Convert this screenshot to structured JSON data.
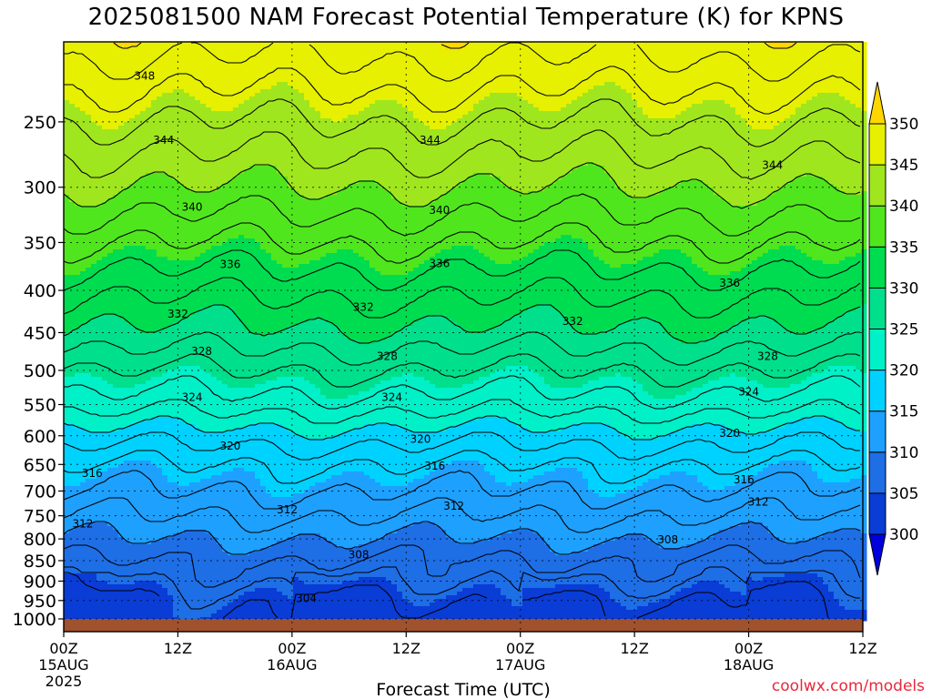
{
  "chart_data": {
    "type": "heatmap",
    "title": "2025081500 NAM Forecast Potential Temperature (K) for KPNS",
    "xlabel": "Forecast Time (UTC)",
    "ylabel": "",
    "x_ticks": [
      {
        "hours": 0,
        "label": "00Z",
        "date": "15AUG",
        "year": "2025"
      },
      {
        "hours": 12,
        "label": "12Z"
      },
      {
        "hours": 24,
        "label": "00Z",
        "date": "16AUG"
      },
      {
        "hours": 36,
        "label": "12Z"
      },
      {
        "hours": 48,
        "label": "00Z",
        "date": "17AUG"
      },
      {
        "hours": 60,
        "label": "12Z"
      },
      {
        "hours": 72,
        "label": "00Z",
        "date": "18AUG"
      },
      {
        "hours": 84,
        "label": "12Z"
      }
    ],
    "xlim": [
      0,
      84
    ],
    "y_ticks": [
      250,
      300,
      350,
      400,
      450,
      500,
      550,
      600,
      650,
      700,
      750,
      800,
      850,
      900,
      950,
      1000
    ],
    "ylim": [
      1000,
      200
    ],
    "y_scale": "log pressure (hPa), decreasing upward",
    "grid": true,
    "colorbar": {
      "levels": [
        300,
        305,
        310,
        315,
        320,
        325,
        330,
        335,
        340,
        345,
        350
      ],
      "colors": [
        "#0000dc",
        "#0a3cd6",
        "#1e6ee6",
        "#1ea0ff",
        "#00d2ff",
        "#00f0c8",
        "#00e08c",
        "#00dc50",
        "#50e61e",
        "#a0e61e",
        "#e6f000",
        "#ffd700"
      ],
      "units": "K",
      "extend": "both"
    },
    "contour_labels": [
      {
        "value": 348,
        "hours": 8.5,
        "p": 220
      },
      {
        "value": 344,
        "hours": 10.5,
        "p": 263
      },
      {
        "value": 344,
        "hours": 38.5,
        "p": 263
      },
      {
        "value": 344,
        "hours": 74.5,
        "p": 282
      },
      {
        "value": 340,
        "hours": 13.5,
        "p": 317
      },
      {
        "value": 340,
        "hours": 39.5,
        "p": 320
      },
      {
        "value": 336,
        "hours": 17.5,
        "p": 372
      },
      {
        "value": 336,
        "hours": 39.5,
        "p": 371
      },
      {
        "value": 336,
        "hours": 70.0,
        "p": 392
      },
      {
        "value": 332,
        "hours": 12.0,
        "p": 427
      },
      {
        "value": 332,
        "hours": 31.5,
        "p": 419
      },
      {
        "value": 332,
        "hours": 53.5,
        "p": 436
      },
      {
        "value": 328,
        "hours": 14.5,
        "p": 474
      },
      {
        "value": 328,
        "hours": 34.0,
        "p": 481
      },
      {
        "value": 328,
        "hours": 74.0,
        "p": 481
      },
      {
        "value": 324,
        "hours": 13.5,
        "p": 539
      },
      {
        "value": 324,
        "hours": 34.5,
        "p": 539
      },
      {
        "value": 324,
        "hours": 72.0,
        "p": 531
      },
      {
        "value": 320,
        "hours": 17.5,
        "p": 617
      },
      {
        "value": 320,
        "hours": 37.5,
        "p": 606
      },
      {
        "value": 320,
        "hours": 70.0,
        "p": 596
      },
      {
        "value": 316,
        "hours": 3.0,
        "p": 666
      },
      {
        "value": 316,
        "hours": 39.0,
        "p": 653
      },
      {
        "value": 316,
        "hours": 71.5,
        "p": 678
      },
      {
        "value": 312,
        "hours": 2.0,
        "p": 767
      },
      {
        "value": 312,
        "hours": 23.5,
        "p": 737
      },
      {
        "value": 312,
        "hours": 41.0,
        "p": 730
      },
      {
        "value": 312,
        "hours": 73.0,
        "p": 722
      },
      {
        "value": 308,
        "hours": 31.0,
        "p": 836
      },
      {
        "value": 308,
        "hours": 63.5,
        "p": 802
      },
      {
        "value": 304,
        "hours": 25.5,
        "p": 945
      }
    ],
    "surface_color": "#a0522d",
    "credit": "coolwx.com/models"
  }
}
